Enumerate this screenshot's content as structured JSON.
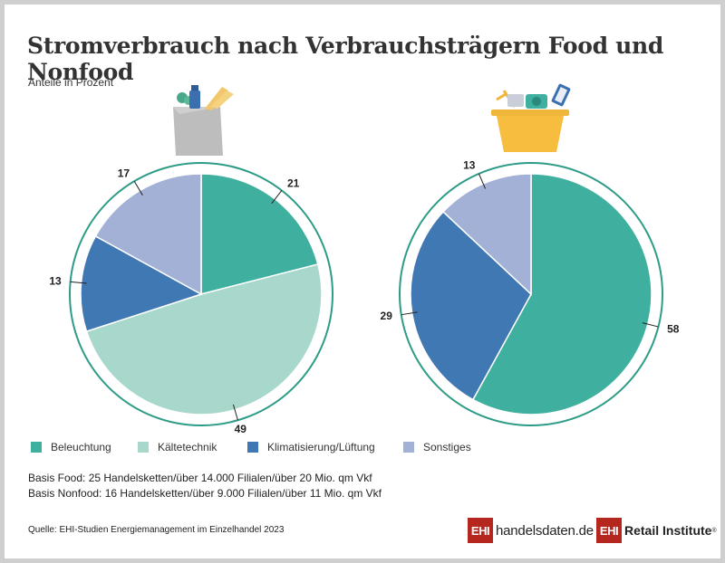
{
  "title": "Stromverbrauch nach Verbrauchsträgern Food und Nonfood",
  "subtitle": "Anteile in Prozent",
  "colors": {
    "beleuchtung": "#3faf9f",
    "kaeltetechnik": "#a8d8cb",
    "klimatisierung": "#4078b3",
    "sonstiges": "#a2b1d5"
  },
  "icons": {
    "food": "grocery-bag-icon",
    "nonfood": "shopping-basket-icon"
  },
  "chart_data": [
    {
      "type": "pie",
      "name": "Food",
      "categories": [
        "Beleuchtung",
        "Kältetechnik",
        "Klimatisierung/Lüftung",
        "Sonstiges"
      ],
      "values": [
        21,
        49,
        13,
        17
      ]
    },
    {
      "type": "pie",
      "name": "Nonfood",
      "categories": [
        "Beleuchtung",
        "Klimatisierung/Lüftung",
        "Sonstiges"
      ],
      "values": [
        58,
        29,
        13
      ]
    }
  ],
  "legend": [
    {
      "label": "Beleuchtung",
      "color": "#3faf9f"
    },
    {
      "label": "Kältetechnik",
      "color": "#a8d8cb"
    },
    {
      "label": "Klimatisierung/Lüftung",
      "color": "#4078b3"
    },
    {
      "label": "Sonstiges",
      "color": "#a2b1d5"
    }
  ],
  "basis_food": "Basis Food: 25 Handelsketten/über 14.000 Filialen/über 20 Mio. qm Vkf",
  "basis_nonfood": "Basis Nonfood: 16 Handelsketten/über 9.000 Filialen/über 11 Mio. qm Vkf",
  "source": "Quelle: EHI-Studien Energiemanagement im Einzelhandel 2023",
  "logo1": {
    "box": "EHI",
    "text": "handelsdaten.de"
  },
  "logo2": {
    "box": "EHI",
    "text": "Retail Institute",
    "mark": "®"
  }
}
